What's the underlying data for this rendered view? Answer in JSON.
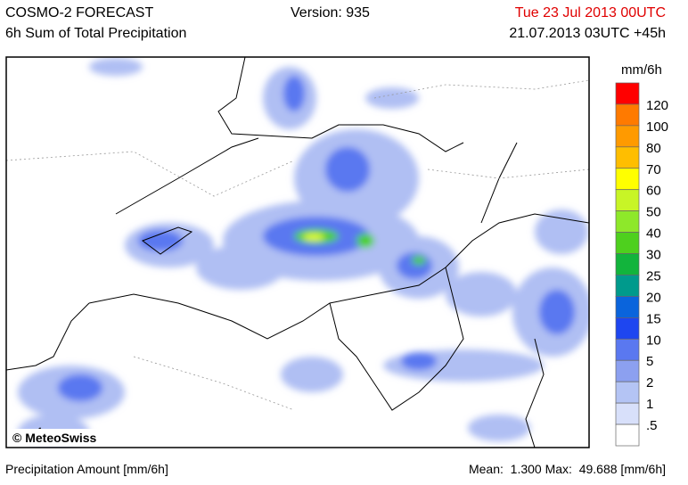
{
  "header": {
    "title": "COSMO-2 FORECAST",
    "subtitle": "6h Sum of Total Precipitation",
    "version": "Version: 935",
    "valid_time": "Tue 23 Jul 2013 00UTC",
    "run_time": "21.07.2013 03UTC +45h"
  },
  "map": {
    "copyright": "© MeteoSwiss"
  },
  "legend": {
    "unit": "mm/6h",
    "labels": [
      "120",
      "100",
      "80",
      "70",
      "60",
      "50",
      "40",
      "30",
      "25",
      "20",
      "15",
      "10",
      "5",
      "2",
      "1",
      ".5"
    ],
    "colors": [
      "#ff0000",
      "#ff7a00",
      "#ff9a00",
      "#ffbe00",
      "#ffff00",
      "#c8f526",
      "#8ee82a",
      "#4ed01e",
      "#12b43c",
      "#009a8c",
      "#0a64dc",
      "#1e46f0",
      "#5a78f0",
      "#8ca0f0",
      "#b4c4f4",
      "#d8e0fa",
      "#ffffff"
    ]
  },
  "footer": {
    "left": "Precipitation Amount [mm/6h]",
    "right": "Mean:  1.300 Max:  49.688 [mm/6h]"
  }
}
